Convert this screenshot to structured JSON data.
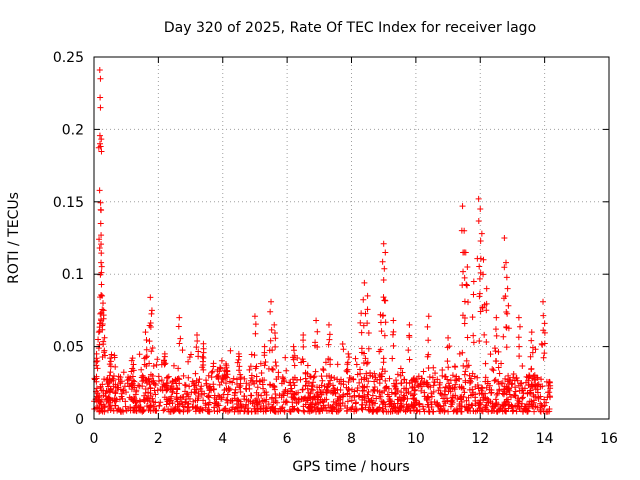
{
  "chart_data": {
    "type": "scatter",
    "title": "Day 320 of 2025, Rate Of TEC Index for receiver lago",
    "xlabel": "GPS time / hours",
    "ylabel": "ROTI / TECUs",
    "xlim": [
      0,
      16
    ],
    "ylim": [
      0,
      0.25
    ],
    "x_ticks": [
      0,
      2,
      4,
      6,
      8,
      10,
      12,
      14,
      16
    ],
    "x_tick_labels": [
      "0",
      "2",
      "4",
      "6",
      "8",
      "10",
      "12",
      "14",
      "16"
    ],
    "y_ticks": [
      0,
      0.05,
      0.1,
      0.15,
      0.2,
      0.25
    ],
    "y_tick_labels": [
      "0",
      "0.05",
      "0.1",
      "0.15",
      "0.2",
      "0.25"
    ],
    "grid": true,
    "marker": "plus",
    "color": "#ff0000",
    "series": [
      {
        "name": "ROTI",
        "data_coverage_hours": [
          0,
          14.2
        ],
        "baseline_range": [
          0.005,
          0.03
        ],
        "peaks": [
          {
            "x": 0.08,
            "y": 0.045
          },
          {
            "x": 0.15,
            "y": 0.06
          },
          {
            "x": 0.18,
            "y": 0.241
          },
          {
            "x": 0.2,
            "y": 0.235
          },
          {
            "x": 0.19,
            "y": 0.222
          },
          {
            "x": 0.2,
            "y": 0.215
          },
          {
            "x": 0.21,
            "y": 0.135
          },
          {
            "x": 0.22,
            "y": 0.127
          },
          {
            "x": 0.22,
            "y": 0.108
          },
          {
            "x": 0.25,
            "y": 0.085
          },
          {
            "x": 0.28,
            "y": 0.08
          },
          {
            "x": 0.3,
            "y": 0.075
          },
          {
            "x": 0.5,
            "y": 0.042
          },
          {
            "x": 1.2,
            "y": 0.042
          },
          {
            "x": 1.6,
            "y": 0.06
          },
          {
            "x": 1.75,
            "y": 0.084
          },
          {
            "x": 1.8,
            "y": 0.075
          },
          {
            "x": 2.2,
            "y": 0.045
          },
          {
            "x": 2.65,
            "y": 0.07
          },
          {
            "x": 3.2,
            "y": 0.058
          },
          {
            "x": 3.4,
            "y": 0.052
          },
          {
            "x": 4.1,
            "y": 0.038
          },
          {
            "x": 4.5,
            "y": 0.045
          },
          {
            "x": 5.0,
            "y": 0.071
          },
          {
            "x": 5.3,
            "y": 0.05
          },
          {
            "x": 5.5,
            "y": 0.081
          },
          {
            "x": 5.6,
            "y": 0.065
          },
          {
            "x": 6.2,
            "y": 0.05
          },
          {
            "x": 6.5,
            "y": 0.058
          },
          {
            "x": 6.9,
            "y": 0.068
          },
          {
            "x": 7.3,
            "y": 0.065
          },
          {
            "x": 7.9,
            "y": 0.045
          },
          {
            "x": 8.3,
            "y": 0.073
          },
          {
            "x": 8.4,
            "y": 0.094
          },
          {
            "x": 8.5,
            "y": 0.085
          },
          {
            "x": 8.9,
            "y": 0.072
          },
          {
            "x": 9.0,
            "y": 0.121
          },
          {
            "x": 9.05,
            "y": 0.115
          },
          {
            "x": 9.0,
            "y": 0.096
          },
          {
            "x": 9.3,
            "y": 0.068
          },
          {
            "x": 9.8,
            "y": 0.065
          },
          {
            "x": 10.4,
            "y": 0.071
          },
          {
            "x": 11.0,
            "y": 0.056
          },
          {
            "x": 11.45,
            "y": 0.147
          },
          {
            "x": 11.5,
            "y": 0.13
          },
          {
            "x": 11.55,
            "y": 0.115
          },
          {
            "x": 11.6,
            "y": 0.105
          },
          {
            "x": 11.8,
            "y": 0.095
          },
          {
            "x": 11.95,
            "y": 0.152
          },
          {
            "x": 12.0,
            "y": 0.145
          },
          {
            "x": 12.05,
            "y": 0.128
          },
          {
            "x": 12.1,
            "y": 0.11
          },
          {
            "x": 12.2,
            "y": 0.09
          },
          {
            "x": 12.5,
            "y": 0.07
          },
          {
            "x": 12.75,
            "y": 0.125
          },
          {
            "x": 12.8,
            "y": 0.108
          },
          {
            "x": 12.85,
            "y": 0.09
          },
          {
            "x": 13.2,
            "y": 0.07
          },
          {
            "x": 13.6,
            "y": 0.06
          },
          {
            "x": 13.95,
            "y": 0.081
          },
          {
            "x": 14.0,
            "y": 0.066
          }
        ]
      }
    ]
  }
}
